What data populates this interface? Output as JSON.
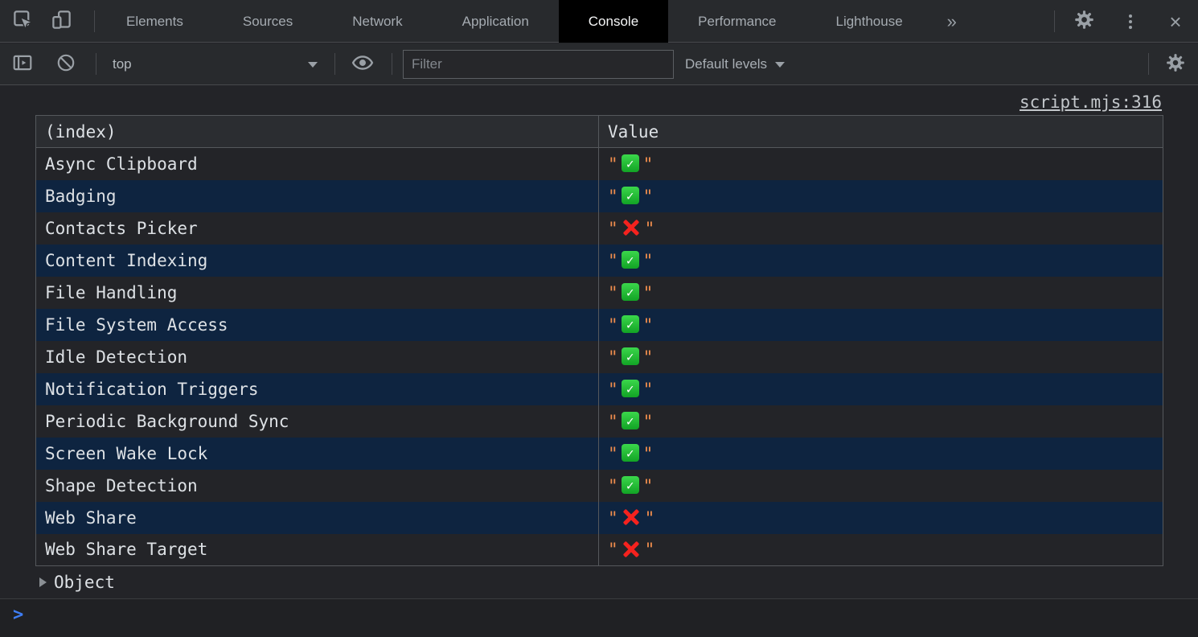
{
  "top_toolbar": {
    "tabs": [
      {
        "label": "Elements",
        "active": false
      },
      {
        "label": "Sources",
        "active": false
      },
      {
        "label": "Network",
        "active": false
      },
      {
        "label": "Application",
        "active": false
      },
      {
        "label": "Console",
        "active": true
      },
      {
        "label": "Performance",
        "active": false
      },
      {
        "label": "Lighthouse",
        "active": false
      }
    ],
    "more_tabs_glyph": "»",
    "close_glyph": "×"
  },
  "console_toolbar": {
    "frame_context": {
      "value": "top"
    },
    "filter": {
      "placeholder": "Filter"
    },
    "levels": {
      "label": "Default levels"
    }
  },
  "console": {
    "source_link": "script.mjs:316",
    "table": {
      "columns": [
        "(index)",
        "Value"
      ],
      "string_quote": "\"",
      "rows": [
        {
          "label": "Async Clipboard",
          "value": "✅"
        },
        {
          "label": "Badging",
          "value": "✅"
        },
        {
          "label": "Contacts Picker",
          "value": "❌"
        },
        {
          "label": "Content Indexing",
          "value": "✅"
        },
        {
          "label": "File Handling",
          "value": "✅"
        },
        {
          "label": "File System Access",
          "value": "✅"
        },
        {
          "label": "Idle Detection",
          "value": "✅"
        },
        {
          "label": "Notification Triggers",
          "value": "✅"
        },
        {
          "label": "Periodic Background Sync",
          "value": "✅"
        },
        {
          "label": "Screen Wake Lock",
          "value": "✅"
        },
        {
          "label": "Shape Detection",
          "value": "✅"
        },
        {
          "label": "Web Share",
          "value": "❌"
        },
        {
          "label": "Web Share Target",
          "value": "❌"
        }
      ]
    },
    "object_row": {
      "label": "Object"
    },
    "prompt": {
      "char": ">"
    }
  },
  "colors": {
    "accent_blue": "#3e7ef6",
    "string_orange": "#ef8d4d",
    "check_green": "#12a325",
    "cross_red": "#f5221e",
    "stripe_blue": "#0e2440",
    "active_tab_bg": "#000000"
  }
}
